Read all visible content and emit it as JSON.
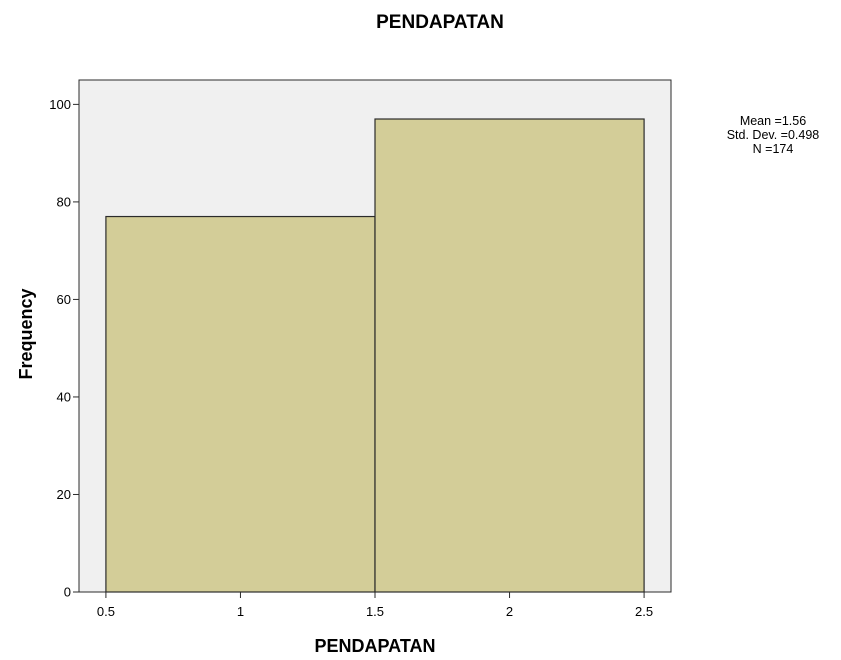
{
  "chart_data": {
    "type": "bar",
    "title": "PENDAPATAN",
    "xlabel": "PENDAPATAN",
    "ylabel": "Frequency",
    "xlim": [
      0.4,
      2.6
    ],
    "ylim": [
      0,
      105
    ],
    "x_ticks": [
      "0.5",
      "1",
      "1.5",
      "2",
      "2.5"
    ],
    "y_ticks": [
      "0",
      "20",
      "40",
      "60",
      "80",
      "100"
    ],
    "bins": [
      {
        "start": 0.5,
        "end": 1.5,
        "value": 77
      },
      {
        "start": 1.5,
        "end": 2.5,
        "value": 97
      }
    ],
    "stats": {
      "mean": "Mean =1.56",
      "std_dev": "Std. Dev. =0.498",
      "n": "N =174"
    },
    "colors": {
      "bar_fill": "#d3cd98",
      "bar_stroke": "#2b2b2b",
      "plot_background": "#f0f0f0"
    }
  }
}
